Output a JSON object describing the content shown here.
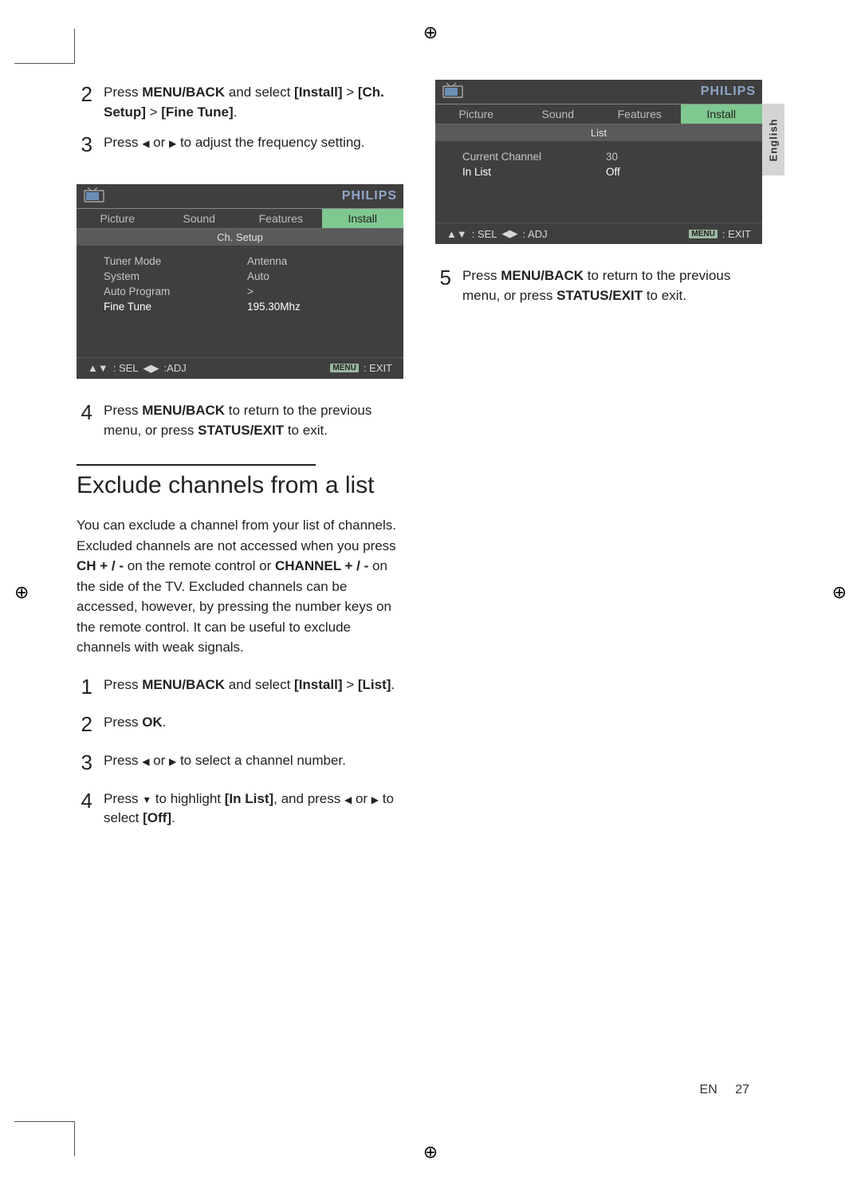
{
  "registration_marks": {
    "glyph": "⊕"
  },
  "lang_tab": {
    "label": "English",
    "bg": "#d4d4d4"
  },
  "page_number": {
    "lang": "EN",
    "num": "27"
  },
  "colors": {
    "tv_bg": "#3f3f3f",
    "tv_text": "#d7d7d7",
    "tv_highlight_bg": "#7fc890",
    "tv_brand_color": "#8fa5c8"
  },
  "left_column": {
    "steps_a": [
      {
        "num": "2",
        "parts": [
          "Press ",
          {
            "b": "MENU/BACK"
          },
          " and select ",
          {
            "b": "[Install]"
          },
          " > ",
          {
            "b": "[Ch. Setup]"
          },
          " > ",
          {
            "b": "[Fine Tune]"
          },
          "."
        ]
      },
      {
        "num": "3",
        "parts": [
          "Press ",
          {
            "tri": "◀"
          },
          " or ",
          {
            "tri": "▶"
          },
          " to adjust the frequency setting."
        ]
      }
    ],
    "tv1": {
      "brand": "PHILIPS",
      "tabs": [
        "Picture",
        "Sound",
        "Features",
        "Install"
      ],
      "active_tab": 3,
      "subheader": "Ch. Setup",
      "rows": [
        {
          "lbl": "Tuner Mode",
          "val": "Antenna"
        },
        {
          "lbl": "System",
          "val": "Auto"
        },
        {
          "lbl": "Auto Program",
          "val": ">"
        },
        {
          "lbl": "Fine Tune",
          "val": "195.30Mhz",
          "hl": true
        }
      ],
      "footer": {
        "sel": ": SEL",
        "adj": ":ADJ",
        "exit": ": EXIT",
        "menu": "MENU"
      }
    },
    "steps_b": [
      {
        "num": "4",
        "parts": [
          "Press ",
          {
            "b": "MENU/BACK"
          },
          " to return to the previous menu, or press ",
          {
            "b": "STATUS/EXIT"
          },
          " to exit."
        ]
      }
    ],
    "section": {
      "title": "Exclude channels from a list",
      "intro": [
        "You can exclude a channel from your list of channels. Excluded channels are not accessed when you press ",
        {
          "b": "CH + / -"
        },
        " on the remote control or ",
        {
          "b": "CHANNEL + / -"
        },
        " on the side of the TV. Excluded channels can be accessed, however, by pressing the number keys on the remote control. It can be useful to exclude channels with weak signals."
      ],
      "steps": [
        {
          "num": "1",
          "parts": [
            "Press ",
            {
              "b": "MENU/BACK"
            },
            " and select ",
            {
              "b": "[Install]"
            },
            " > ",
            {
              "b": "[List]"
            },
            "."
          ]
        },
        {
          "num": "2",
          "parts": [
            "Press ",
            {
              "b": "OK"
            },
            "."
          ]
        },
        {
          "num": "3",
          "parts": [
            "Press ",
            {
              "tri": "◀"
            },
            " or ",
            {
              "tri": "▶"
            },
            " to select a channel number."
          ]
        },
        {
          "num": "4",
          "parts": [
            "Press ",
            {
              "tri": "▼"
            },
            " to highlight ",
            {
              "b": "[In List]"
            },
            ", and press ",
            {
              "tri": "◀"
            },
            " or ",
            {
              "tri": "▶"
            },
            " to select ",
            {
              "b": "[Off]"
            },
            "."
          ]
        }
      ]
    }
  },
  "right_column": {
    "tv2": {
      "brand": "PHILIPS",
      "tabs": [
        "Picture",
        "Sound",
        "Features",
        "Install"
      ],
      "active_tab": 3,
      "subheader": "List",
      "rows": [
        {
          "lbl": "Current Channel",
          "val": "30"
        },
        {
          "lbl": "In List",
          "val": "Off",
          "hl": true
        }
      ],
      "footer": {
        "sel": ": SEL",
        "adj": ": ADJ",
        "exit": ": EXIT",
        "menu": "MENU"
      }
    },
    "steps": [
      {
        "num": "5",
        "parts": [
          "Press ",
          {
            "b": "MENU/BACK"
          },
          " to return to the previous menu, or press ",
          {
            "b": "STATUS/EXIT"
          },
          " to exit."
        ]
      }
    ]
  }
}
